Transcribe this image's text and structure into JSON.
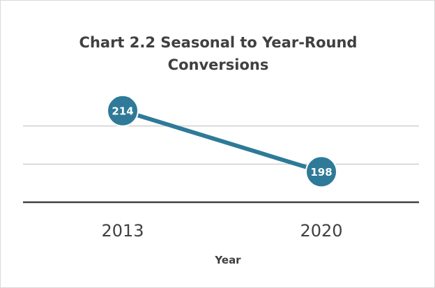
{
  "chart_data": {
    "type": "line",
    "title": "Chart 2.2 Seasonal to Year-Round Conversions",
    "title_lines": [
      "Chart 2.2 Seasonal to Year-Round",
      "Conversions"
    ],
    "xlabel": "Year",
    "ylabel": "",
    "categories": [
      "2013",
      "2020"
    ],
    "series": [
      {
        "values": [
          214,
          198
        ],
        "color": "#2e7a98"
      }
    ],
    "data_labels": [
      "214",
      "198"
    ],
    "ylim": [
      190,
      220
    ],
    "grid": "horizontal",
    "gridline_values": [
      200,
      210
    ],
    "legend": "none",
    "colors": {
      "gridline": "#d0d0d0",
      "axis": "#404040",
      "marker_stroke": "#ffffff"
    }
  }
}
